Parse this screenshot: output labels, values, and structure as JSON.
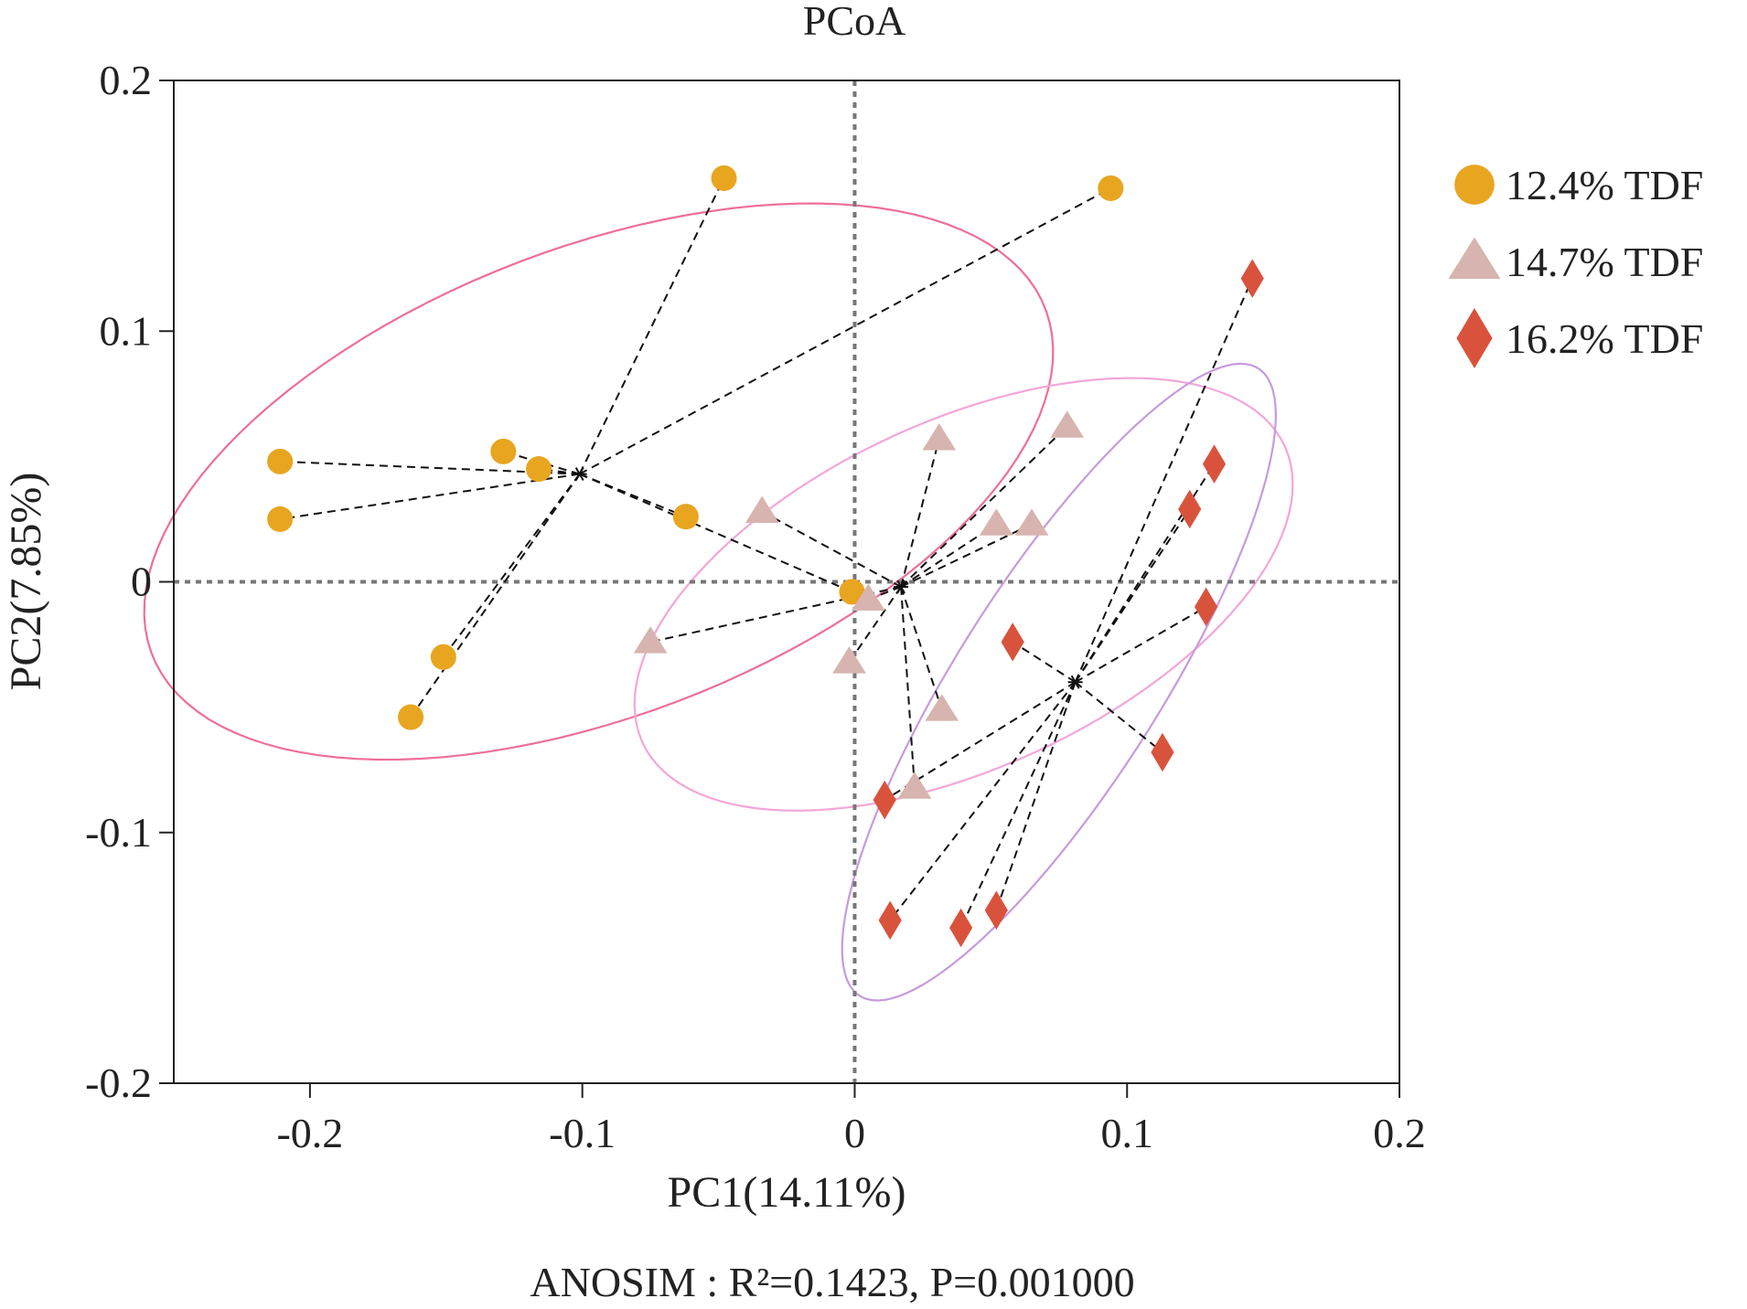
{
  "chart_data": {
    "type": "scatter",
    "title": "PCoA",
    "xlabel": "PC1(14.11%)",
    "ylabel": "PC2(7.85%)",
    "xlim": [
      -0.25,
      0.2
    ],
    "ylim": [
      -0.2,
      0.2
    ],
    "xticks": [
      -0.2,
      -0.1,
      0,
      0.1,
      0.2
    ],
    "xtick_labels": [
      "-0.2",
      "-0.1",
      "0",
      "0.1",
      "0.2"
    ],
    "yticks": [
      0.2,
      0.1,
      0,
      -0.1,
      -0.2
    ],
    "ytick_labels": [
      "0.2",
      "0.1",
      "0",
      "-0.1",
      "-0.2"
    ],
    "reference_lines": {
      "x": 0,
      "y": 0,
      "style": "dotted"
    },
    "annotation": "ANOSIM : R²=0.1423, P=0.001000",
    "legend_position": "right",
    "series": [
      {
        "name": "12.4% TDF",
        "marker": "circle",
        "color": "#E8A520",
        "ellipse_color": "#EE6E9A",
        "centroid": [
          -0.101,
          0.043
        ],
        "points": [
          [
            -0.048,
            0.161
          ],
          [
            0.094,
            0.157
          ],
          [
            -0.211,
            0.048
          ],
          [
            -0.211,
            0.025
          ],
          [
            -0.129,
            0.052
          ],
          [
            -0.116,
            0.045
          ],
          [
            -0.062,
            0.026
          ],
          [
            -0.151,
            -0.03
          ],
          [
            -0.163,
            -0.054
          ],
          [
            -0.001,
            -0.004
          ]
        ],
        "ellipse": {
          "center": [
            -0.094,
            0.04
          ],
          "semi_axes": [
            0.178,
            0.092
          ],
          "angle_deg": 24
        }
      },
      {
        "name": "14.7% TDF",
        "marker": "triangle",
        "color": "#D7B4AF",
        "ellipse_color": "#F3A6D8",
        "centroid": [
          0.017,
          -0.002
        ],
        "points": [
          [
            0.031,
            0.057
          ],
          [
            0.078,
            0.062
          ],
          [
            -0.034,
            0.028
          ],
          [
            0.052,
            0.023
          ],
          [
            0.065,
            0.023
          ],
          [
            0.005,
            -0.007
          ],
          [
            -0.075,
            -0.024
          ],
          [
            -0.002,
            -0.032
          ],
          [
            0.032,
            -0.051
          ],
          [
            0.022,
            -0.082
          ]
        ],
        "ellipse": {
          "center": [
            0.04,
            -0.005
          ],
          "semi_axes": [
            0.132,
            0.068
          ],
          "angle_deg": 28
        }
      },
      {
        "name": "16.2% TDF",
        "marker": "diamond",
        "color": "#D9533C",
        "ellipse_color": "#C69BDC",
        "centroid": [
          0.081,
          -0.04
        ],
        "points": [
          [
            0.146,
            0.121
          ],
          [
            0.132,
            0.047
          ],
          [
            0.123,
            0.029
          ],
          [
            0.129,
            -0.01
          ],
          [
            0.058,
            -0.024
          ],
          [
            0.113,
            -0.068
          ],
          [
            0.011,
            -0.087
          ],
          [
            0.013,
            -0.135
          ],
          [
            0.039,
            -0.138
          ],
          [
            0.052,
            -0.131
          ]
        ],
        "ellipse": {
          "center": [
            0.075,
            -0.04
          ],
          "semi_axes": [
            0.145,
            0.038
          ],
          "angle_deg": 60
        }
      }
    ]
  }
}
